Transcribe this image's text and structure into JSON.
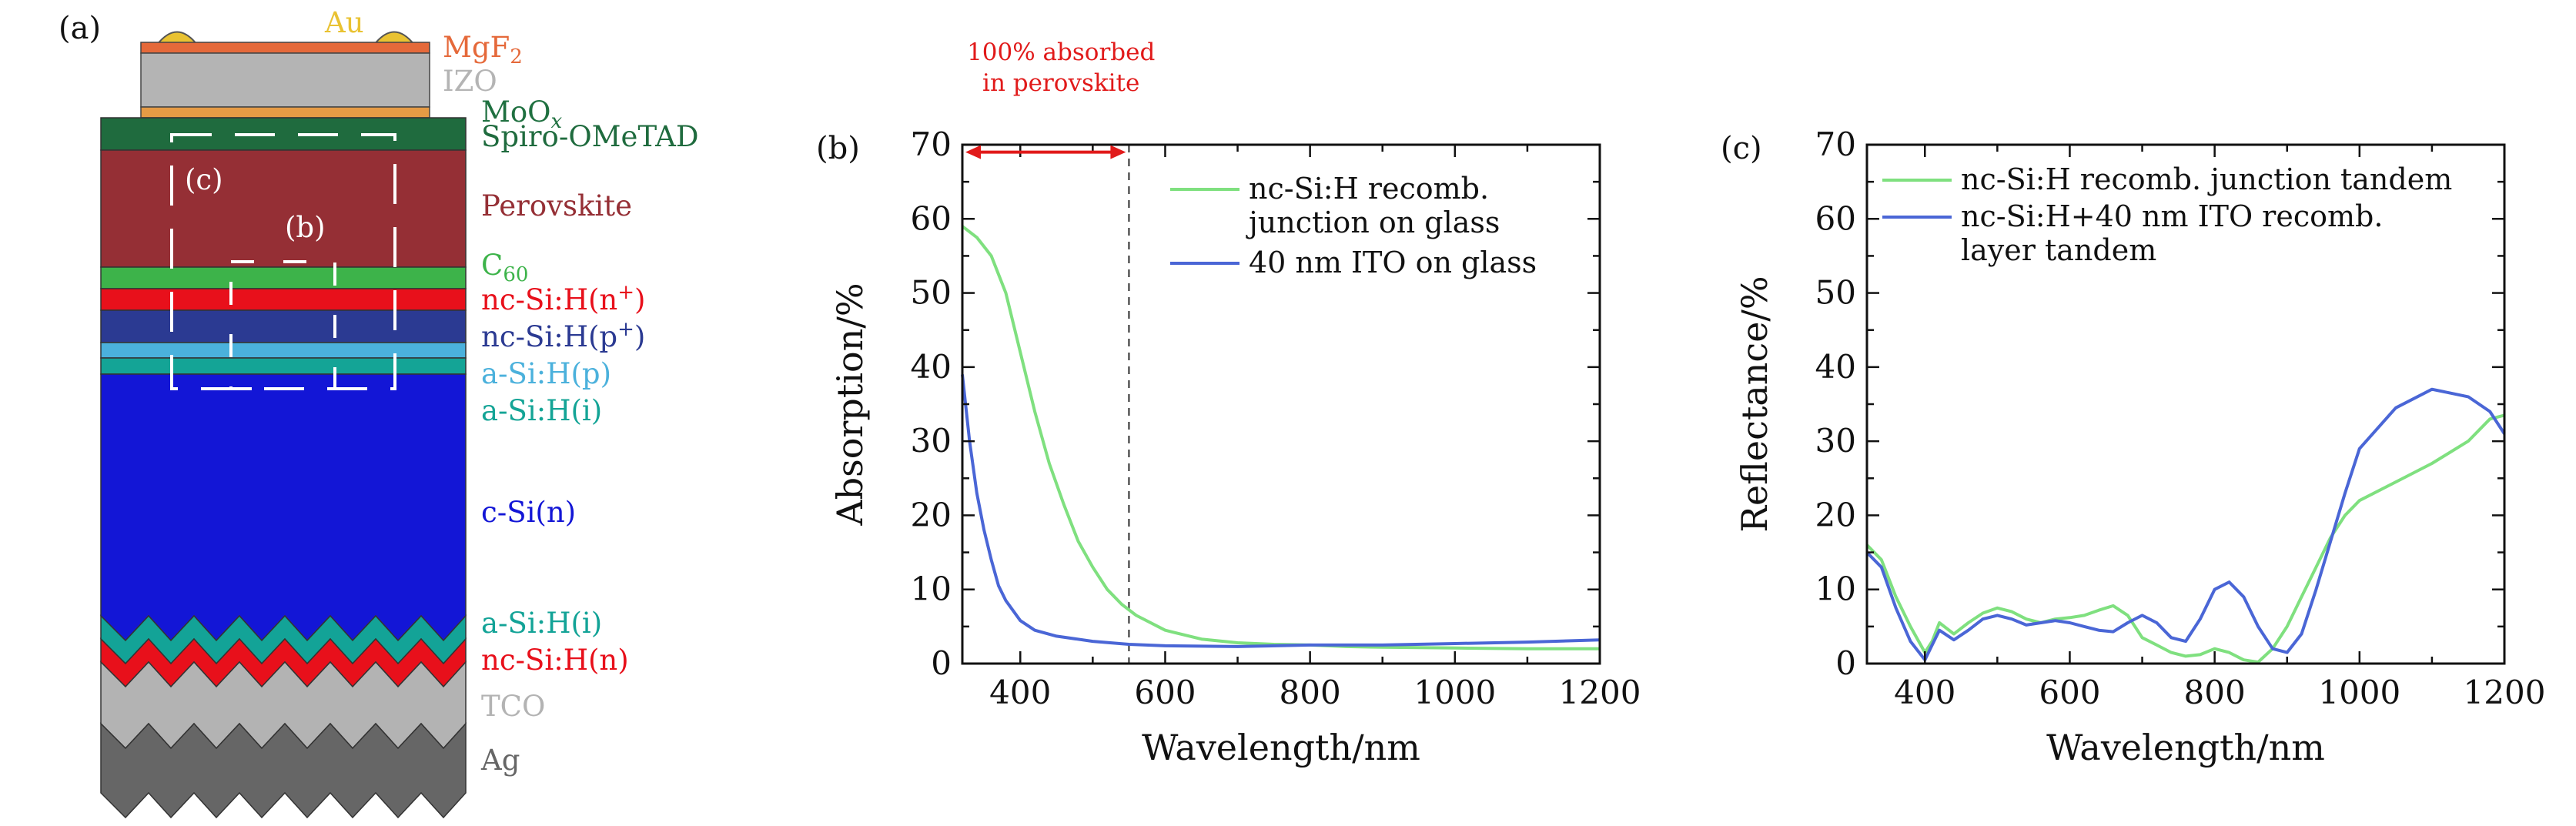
{
  "panel_a": {
    "label": "(a)",
    "box_labels": [
      "(c)",
      "(b)"
    ],
    "layers": [
      {
        "key": "au",
        "text": "Au",
        "color": "#e9c232"
      },
      {
        "key": "mgf2",
        "text": "MgF",
        "sub": "2",
        "color": "#e5693a"
      },
      {
        "key": "izo",
        "text": "IZO",
        "color": "#b4b4b4"
      },
      {
        "key": "moox",
        "text": "MoO",
        "sub": "x",
        "color": "#1f7040"
      },
      {
        "key": "spiro",
        "text": "Spiro-OMeTAD",
        "color": "#1f6b3e"
      },
      {
        "key": "perov",
        "text": "Perovskite",
        "color": "#952f35"
      },
      {
        "key": "c60",
        "text": "C",
        "sub": "60",
        "color": "#3db34a"
      },
      {
        "key": "ncn",
        "text": "nc-Si:H(n",
        "sup": "+",
        "tail": ")",
        "color": "#e8101b"
      },
      {
        "key": "ncp",
        "text": "nc-Si:H(p",
        "sup": "+",
        "tail": ")",
        "color": "#2b3a92"
      },
      {
        "key": "asip",
        "text": "a-Si:H(p)",
        "color": "#4bb1dc"
      },
      {
        "key": "asii",
        "text": "a-Si:H(i)",
        "color": "#14a496"
      },
      {
        "key": "csi",
        "text": "c-Si(n)",
        "color": "#1316d6"
      },
      {
        "key": "asii2",
        "text": "a-Si:H(i)",
        "color": "#13a397"
      },
      {
        "key": "ncn2",
        "text": "nc-Si:H(n)",
        "color": "#e8101b"
      },
      {
        "key": "tco",
        "text": "TCO",
        "color": "#b3b3b3"
      },
      {
        "key": "ag",
        "text": "Ag",
        "color": "#666666"
      }
    ]
  },
  "chart_data": [
    {
      "panel": "(b)",
      "type": "line",
      "xlabel": "Wavelength/nm",
      "ylabel": "Absorption/%",
      "xlim": [
        320,
        1200
      ],
      "ylim": [
        0,
        70
      ],
      "xticks": [
        400,
        600,
        800,
        1000,
        1200
      ],
      "yticks": [
        0,
        10,
        20,
        30,
        40,
        50,
        60,
        70
      ],
      "grid": false,
      "legend_position": "top-right",
      "annotation": {
        "lines": [
          "100% absorbed",
          "in perovskite"
        ],
        "x_range": [
          320,
          550
        ],
        "y": 69,
        "color": "#e11a1a"
      },
      "vline_x": 550,
      "series": [
        {
          "name": "nc-Si:H recomb.",
          "name_line2": "junction on glass",
          "color": "#7fe07f",
          "x": [
            320,
            340,
            360,
            380,
            400,
            420,
            440,
            460,
            480,
            500,
            520,
            540,
            560,
            600,
            650,
            700,
            750,
            800,
            850,
            900,
            1000,
            1100,
            1200
          ],
          "y": [
            59,
            57.5,
            55,
            50,
            42,
            34,
            27,
            21.5,
            16.5,
            13,
            10,
            8,
            6.5,
            4.5,
            3.3,
            2.8,
            2.6,
            2.5,
            2.3,
            2.2,
            2.1,
            2.0,
            2.0
          ]
        },
        {
          "name": "40 nm ITO on glass",
          "color": "#4a66d6",
          "x": [
            320,
            330,
            340,
            350,
            360,
            370,
            380,
            400,
            420,
            450,
            500,
            550,
            600,
            700,
            800,
            900,
            1000,
            1100,
            1200
          ],
          "y": [
            39,
            30,
            23,
            18,
            14,
            10.5,
            8.5,
            5.8,
            4.5,
            3.7,
            3.0,
            2.6,
            2.4,
            2.3,
            2.5,
            2.5,
            2.7,
            2.9,
            3.2
          ]
        }
      ]
    },
    {
      "panel": "(c)",
      "type": "line",
      "xlabel": "Wavelength/nm",
      "ylabel": "Reflectance/%",
      "xlim": [
        320,
        1200
      ],
      "ylim": [
        0,
        70
      ],
      "xticks": [
        400,
        600,
        800,
        1000,
        1200
      ],
      "yticks": [
        0,
        10,
        20,
        30,
        40,
        50,
        60,
        70
      ],
      "grid": false,
      "legend_position": "top-right",
      "series": [
        {
          "name": "nc-Si:H recomb. junction tandem",
          "color": "#7fe07f",
          "x": [
            320,
            340,
            360,
            380,
            400,
            410,
            420,
            440,
            460,
            480,
            500,
            520,
            540,
            560,
            580,
            600,
            620,
            640,
            660,
            680,
            700,
            720,
            740,
            760,
            780,
            800,
            820,
            840,
            860,
            880,
            900,
            920,
            940,
            960,
            980,
            1000,
            1050,
            1100,
            1150,
            1180,
            1200
          ],
          "y": [
            16,
            14,
            9,
            5,
            1.5,
            3,
            5.5,
            4,
            5.5,
            6.8,
            7.5,
            7,
            6,
            5.5,
            6,
            6.2,
            6.5,
            7.2,
            7.8,
            6.5,
            3.5,
            2.5,
            1.5,
            1,
            1.2,
            2,
            1.5,
            0.5,
            0.2,
            2,
            5,
            9,
            13,
            17,
            20,
            22,
            24.5,
            27,
            30,
            33,
            33.5
          ]
        },
        {
          "name": "nc-Si:H+40 nm ITO recomb.",
          "name_line2": "layer tandem",
          "color": "#4a66d6",
          "x": [
            320,
            340,
            360,
            380,
            400,
            410,
            420,
            440,
            460,
            480,
            500,
            520,
            540,
            560,
            580,
            600,
            620,
            640,
            660,
            680,
            700,
            720,
            740,
            760,
            780,
            800,
            820,
            840,
            860,
            880,
            900,
            920,
            940,
            960,
            980,
            1000,
            1050,
            1100,
            1150,
            1180,
            1200
          ],
          "y": [
            15,
            13,
            7.5,
            3,
            0.5,
            2.5,
            4.5,
            3.2,
            4.5,
            6,
            6.5,
            6,
            5.2,
            5.5,
            5.8,
            5.5,
            5,
            4.5,
            4.3,
            5.5,
            6.5,
            5.5,
            3.5,
            3,
            6,
            10,
            11,
            9,
            5,
            2,
            1.5,
            4,
            10,
            16.5,
            23,
            29,
            34.5,
            37,
            36,
            34,
            31
          ]
        }
      ]
    }
  ]
}
